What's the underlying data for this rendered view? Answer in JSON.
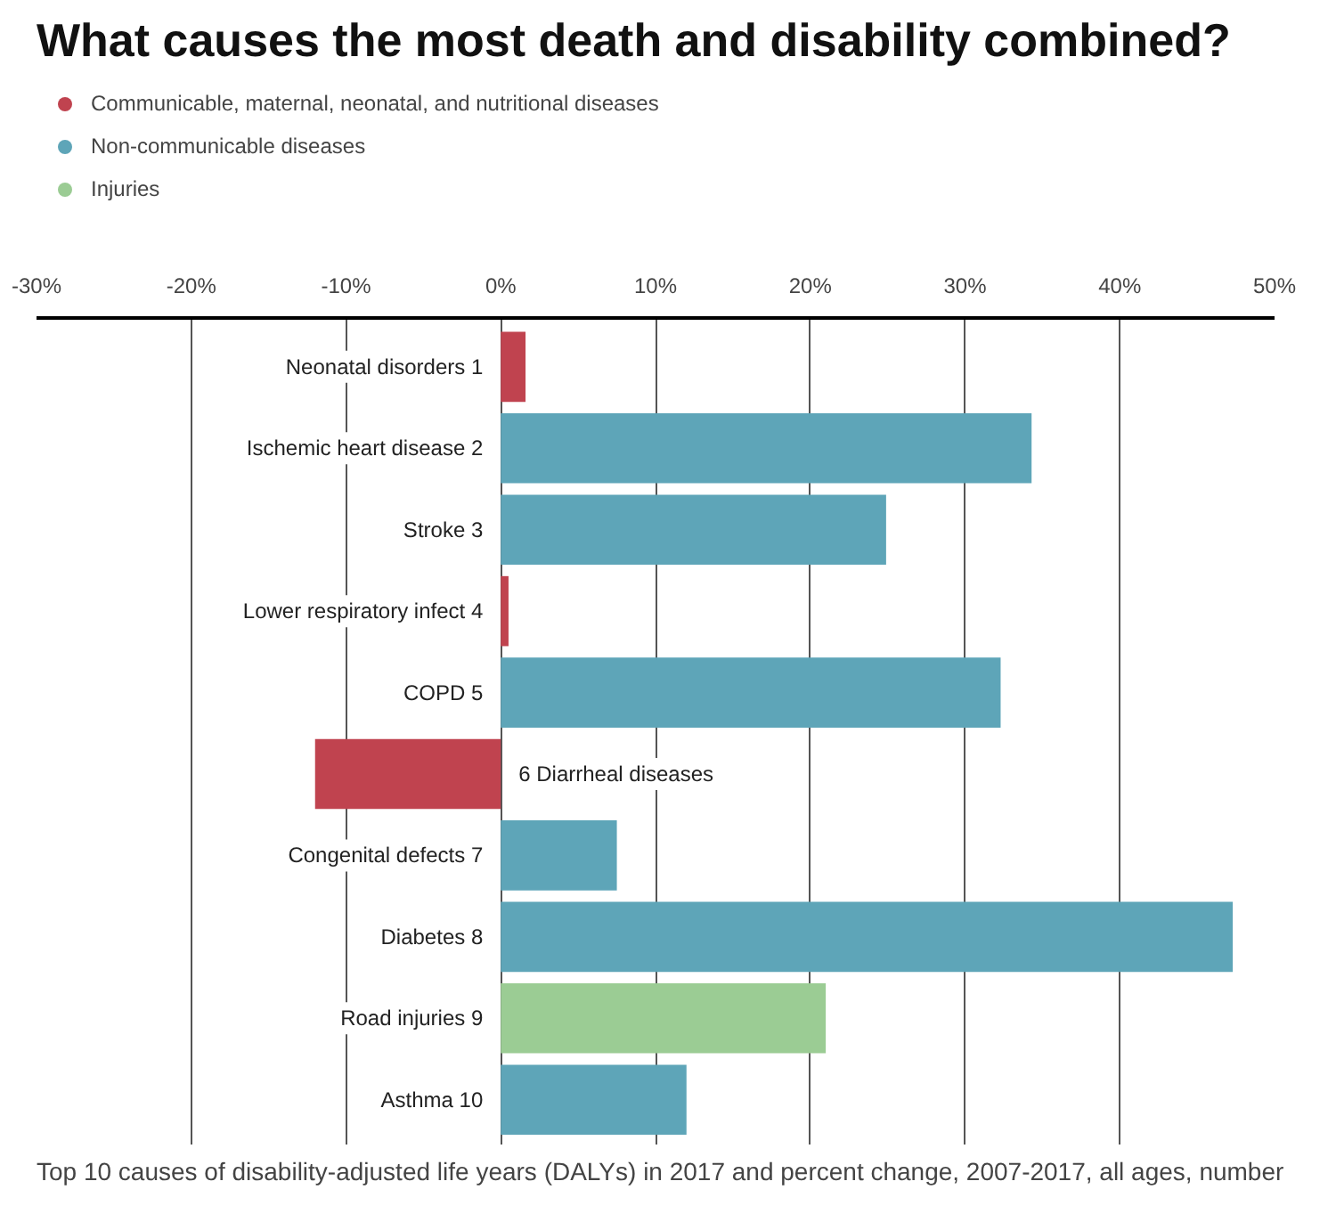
{
  "chart_data": {
    "type": "bar",
    "orientation": "horizontal",
    "title": "What causes the most death and disability combined?",
    "categories": [
      "Neonatal disorders 1",
      "Ischemic heart disease 2",
      "Stroke 3",
      "Lower respiratory infect 4",
      "COPD 5",
      "6 Diarrheal diseases",
      "Congenital defects 7",
      "Diabetes 8",
      "Road injuries 9",
      "Asthma 10"
    ],
    "series": [
      {
        "name": "Communicable, maternal, neonatal, and nutritional diseases",
        "color": "#c0434f",
        "values": [
          1.6,
          null,
          null,
          0.5,
          null,
          -12.0,
          null,
          null,
          null,
          null
        ]
      },
      {
        "name": "Non-communicable diseases",
        "color": "#5ea5b8",
        "values": [
          null,
          34.3,
          24.9,
          null,
          32.3,
          null,
          7.5,
          47.3,
          null,
          12.0
        ]
      },
      {
        "name": "Injuries",
        "color": "#9bcc94",
        "values": [
          null,
          null,
          null,
          null,
          null,
          null,
          null,
          null,
          21.0,
          null
        ]
      }
    ],
    "xlim": [
      -30,
      50
    ],
    "xticks": [
      {
        "value": -30,
        "label": "-30%"
      },
      {
        "value": -20,
        "label": "-20%"
      },
      {
        "value": -10,
        "label": "-10%"
      },
      {
        "value": 0,
        "label": "0%"
      },
      {
        "value": 10,
        "label": "10%"
      },
      {
        "value": 20,
        "label": "20%"
      },
      {
        "value": 30,
        "label": "30%"
      },
      {
        "value": 40,
        "label": "40%"
      },
      {
        "value": 50,
        "label": "50%"
      }
    ],
    "grid": "x",
    "legend": "top left",
    "tick_labels": "x",
    "annotations": [
      "Top 10 causes of disability-adjusted life years (DALYs) in 2017 and percent change, 2007-2017, all ages, number"
    ]
  }
}
